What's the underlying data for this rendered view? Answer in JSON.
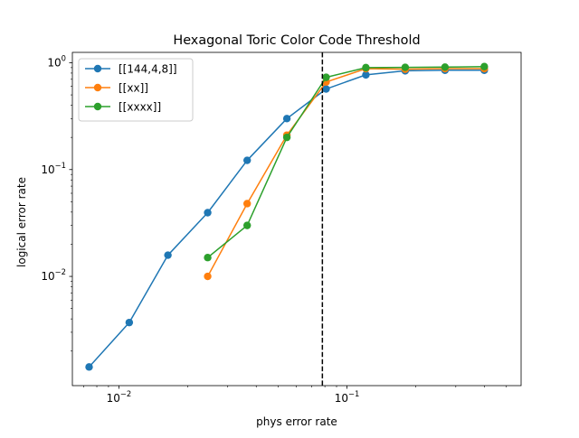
{
  "chart_data": {
    "type": "line",
    "title": "Hexagonal Toric Color Code Threshold",
    "xlabel": "phys error rate",
    "ylabel": "logical error rate",
    "xscale": "log",
    "yscale": "log",
    "xlim": [
      0.00625,
      0.58
    ],
    "ylim": [
      0.00095,
      1.25
    ],
    "grid": false,
    "legend_position": "top-left",
    "x_ticks": [
      {
        "value": 0.01,
        "base": "10",
        "exp": "−2"
      },
      {
        "value": 0.1,
        "base": "10",
        "exp": "−1"
      }
    ],
    "y_ticks": [
      {
        "value": 0.01,
        "base": "10",
        "exp": "−2"
      },
      {
        "value": 0.1,
        "base": "10",
        "exp": "−1"
      },
      {
        "value": 1,
        "base": "10",
        "exp": "0"
      }
    ],
    "threshold_line": {
      "x": 0.078,
      "style": "dashed",
      "color": "#000000"
    },
    "series": [
      {
        "name": "[[144,4,8]]",
        "color": "#1f77b4",
        "x": [
          0.0074,
          0.0111,
          0.0164,
          0.0245,
          0.0365,
          0.0545,
          0.081,
          0.121,
          0.18,
          0.269,
          0.4
        ],
        "y": [
          0.00142,
          0.0037,
          0.0158,
          0.0395,
          0.122,
          0.3,
          0.568,
          0.77,
          0.84,
          0.85,
          0.85
        ]
      },
      {
        "name": "[[xx]]",
        "color": "#ff7f0e",
        "x": [
          0.0245,
          0.0365,
          0.0545,
          0.081,
          0.121,
          0.18,
          0.269,
          0.4
        ],
        "y": [
          0.01,
          0.048,
          0.21,
          0.66,
          0.88,
          0.87,
          0.88,
          0.88
        ]
      },
      {
        "name": "[[xxxx]]",
        "color": "#2ca02c",
        "x": [
          0.0245,
          0.0365,
          0.0545,
          0.081,
          0.121,
          0.18,
          0.269,
          0.4
        ],
        "y": [
          0.015,
          0.03,
          0.2,
          0.73,
          0.9,
          0.905,
          0.91,
          0.92
        ]
      }
    ]
  }
}
